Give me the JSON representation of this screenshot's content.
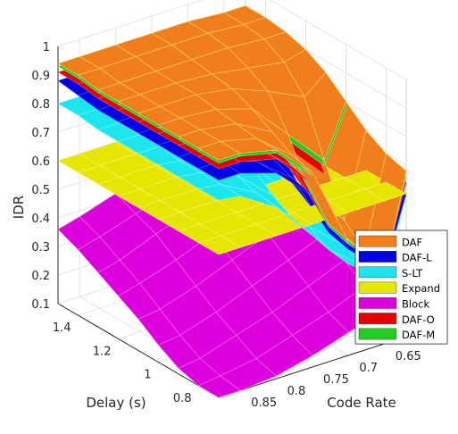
{
  "chart_data": {
    "type": "surface",
    "zlabel": "IDR",
    "xlabel": "Delay (s)",
    "ylabel": "Code Rate",
    "zlim": [
      0.1,
      1.0
    ],
    "z_ticks": [
      "0.1",
      "0.2",
      "0.3",
      "0.4",
      "0.5",
      "0.6",
      "0.7",
      "0.8",
      "0.9",
      "1"
    ],
    "x_ticks": [
      "0.8",
      "1",
      "1.2",
      "1.4"
    ],
    "y_ticks": [
      "0.85",
      "0.8",
      "0.75",
      "0.7",
      "0.65"
    ],
    "delay": [
      1.5,
      1.4,
      1.3,
      1.2,
      1.1,
      1.0,
      0.9,
      0.8,
      0.7
    ],
    "code_rate": [
      0.62,
      0.65,
      0.7,
      0.75,
      0.8,
      0.85,
      0.88
    ],
    "legend_position": "lower-right",
    "grid": true,
    "series": [
      {
        "name": "DAF",
        "color": "#f07e1a",
        "edge": "#ffd27a",
        "z": [
          [
            0.93,
            0.93,
            0.94,
            0.94,
            0.94,
            0.94,
            0.94
          ],
          [
            0.93,
            0.93,
            0.94,
            0.94,
            0.94,
            0.94,
            0.94
          ],
          [
            0.92,
            0.92,
            0.93,
            0.93,
            0.93,
            0.93,
            0.93
          ],
          [
            0.9,
            0.88,
            0.9,
            0.92,
            0.93,
            0.93,
            0.93
          ],
          [
            0.86,
            0.8,
            0.86,
            0.91,
            0.93,
            0.93,
            0.93
          ],
          [
            0.8,
            0.62,
            0.75,
            0.88,
            0.92,
            0.93,
            0.93
          ],
          [
            0.74,
            0.45,
            0.6,
            0.84,
            0.91,
            0.93,
            0.93
          ],
          [
            0.7,
            0.38,
            0.52,
            0.8,
            0.9,
            0.93,
            0.93
          ],
          [
            0.68,
            0.36,
            0.5,
            0.78,
            0.9,
            0.93,
            0.93
          ]
        ]
      },
      {
        "name": "DAF-L",
        "color": "#0000e6",
        "edge": "#5a5aff",
        "z": [
          [
            0.87,
            0.87,
            0.88,
            0.88,
            0.88,
            0.88,
            0.88
          ],
          [
            0.86,
            0.86,
            0.87,
            0.87,
            0.87,
            0.87,
            0.87
          ],
          [
            0.85,
            0.84,
            0.85,
            0.86,
            0.86,
            0.86,
            0.86
          ],
          [
            0.83,
            0.79,
            0.82,
            0.85,
            0.86,
            0.86,
            0.86
          ],
          [
            0.79,
            0.69,
            0.76,
            0.83,
            0.85,
            0.86,
            0.86
          ],
          [
            0.72,
            0.52,
            0.64,
            0.79,
            0.84,
            0.86,
            0.86
          ],
          [
            0.66,
            0.42,
            0.55,
            0.75,
            0.83,
            0.86,
            0.86
          ],
          [
            0.62,
            0.37,
            0.49,
            0.72,
            0.82,
            0.86,
            0.86
          ],
          [
            0.6,
            0.36,
            0.47,
            0.7,
            0.82,
            0.86,
            0.86
          ]
        ]
      },
      {
        "name": "S-LT",
        "color": "#1be6ee",
        "edge": "#7ff5f8",
        "z": [
          [
            0.8,
            0.78,
            0.79,
            0.8,
            0.8,
            0.8,
            0.8
          ],
          [
            0.8,
            0.77,
            0.78,
            0.79,
            0.8,
            0.8,
            0.8
          ],
          [
            0.79,
            0.74,
            0.76,
            0.78,
            0.79,
            0.79,
            0.79
          ],
          [
            0.77,
            0.67,
            0.72,
            0.76,
            0.78,
            0.79,
            0.79
          ],
          [
            0.73,
            0.55,
            0.65,
            0.73,
            0.77,
            0.79,
            0.79
          ],
          [
            0.67,
            0.43,
            0.55,
            0.68,
            0.75,
            0.78,
            0.79
          ],
          [
            0.62,
            0.36,
            0.47,
            0.62,
            0.73,
            0.78,
            0.79
          ],
          [
            0.6,
            0.33,
            0.43,
            0.58,
            0.71,
            0.78,
            0.79
          ],
          [
            0.6,
            0.32,
            0.42,
            0.56,
            0.7,
            0.78,
            0.79
          ]
        ]
      },
      {
        "name": "Expand",
        "color": "#e6e600",
        "edge": "#f4f47a",
        "z": [
          [
            0.6,
            0.6,
            0.6,
            0.6,
            0.6,
            0.6,
            0.6
          ],
          [
            0.6,
            0.6,
            0.6,
            0.6,
            0.6,
            0.6,
            0.6
          ],
          [
            0.6,
            0.6,
            0.6,
            0.6,
            0.6,
            0.6,
            0.6
          ],
          [
            0.6,
            0.6,
            0.6,
            0.6,
            0.6,
            0.6,
            0.6
          ],
          [
            0.6,
            0.6,
            0.6,
            0.6,
            0.6,
            0.6,
            0.6
          ],
          [
            0.6,
            0.6,
            0.6,
            0.6,
            0.6,
            0.6,
            0.6
          ],
          [
            0.6,
            0.6,
            0.6,
            0.6,
            0.6,
            0.6,
            0.6
          ],
          [
            0.6,
            0.6,
            0.6,
            0.6,
            0.6,
            0.6,
            0.6
          ],
          [
            0.6,
            0.6,
            0.6,
            0.6,
            0.6,
            0.6,
            0.6
          ]
        ]
      },
      {
        "name": "Block",
        "color": "#dd00dd",
        "edge": "#ef7aef",
        "z": [
          [
            0.56,
            0.53,
            0.5,
            0.46,
            0.42,
            0.38,
            0.36
          ],
          [
            0.53,
            0.51,
            0.47,
            0.43,
            0.39,
            0.35,
            0.33
          ],
          [
            0.5,
            0.48,
            0.44,
            0.4,
            0.36,
            0.31,
            0.29
          ],
          [
            0.46,
            0.44,
            0.4,
            0.36,
            0.31,
            0.27,
            0.25
          ],
          [
            0.42,
            0.4,
            0.36,
            0.31,
            0.26,
            0.22,
            0.21
          ],
          [
            0.38,
            0.36,
            0.31,
            0.26,
            0.21,
            0.17,
            0.16
          ],
          [
            0.33,
            0.31,
            0.26,
            0.21,
            0.17,
            0.13,
            0.12
          ],
          [
            0.28,
            0.26,
            0.21,
            0.17,
            0.13,
            0.11,
            0.1
          ],
          [
            0.24,
            0.22,
            0.18,
            0.14,
            0.11,
            0.1,
            0.1
          ]
        ]
      },
      {
        "name": "DAF-O",
        "color": "#e60000",
        "edge": "#ff6a6a",
        "z": [
          [
            0.9,
            0.9,
            0.91,
            0.91,
            0.91,
            0.91,
            0.91
          ],
          [
            0.9,
            0.9,
            0.91,
            0.91,
            0.91,
            0.91,
            0.91
          ],
          [
            0.89,
            0.89,
            0.9,
            0.9,
            0.9,
            0.9,
            0.9
          ],
          [
            0.87,
            0.84,
            0.87,
            0.89,
            0.9,
            0.9,
            0.9
          ],
          [
            0.83,
            0.75,
            0.81,
            0.88,
            0.9,
            0.9,
            0.9
          ],
          [
            0.76,
            0.57,
            0.7,
            0.84,
            0.89,
            0.9,
            0.9
          ],
          [
            0.7,
            0.44,
            0.58,
            0.8,
            0.88,
            0.9,
            0.9
          ],
          [
            0.66,
            0.38,
            0.51,
            0.76,
            0.87,
            0.9,
            0.9
          ],
          [
            0.64,
            0.37,
            0.49,
            0.74,
            0.87,
            0.9,
            0.9
          ]
        ]
      },
      {
        "name": "DAF-M",
        "color": "#22cc22",
        "edge": "#8cf08c",
        "z": [
          [
            0.92,
            0.92,
            0.92,
            0.93,
            0.93,
            0.93,
            0.93
          ],
          [
            0.92,
            0.92,
            0.92,
            0.93,
            0.93,
            0.93,
            0.93
          ],
          [
            0.91,
            0.91,
            0.91,
            0.92,
            0.92,
            0.92,
            0.92
          ],
          [
            0.89,
            0.86,
            0.89,
            0.91,
            0.92,
            0.92,
            0.92
          ],
          [
            0.85,
            0.78,
            0.84,
            0.9,
            0.92,
            0.92,
            0.92
          ],
          [
            0.78,
            0.6,
            0.73,
            0.87,
            0.91,
            0.92,
            0.92
          ],
          [
            0.72,
            0.45,
            0.59,
            0.83,
            0.9,
            0.92,
            0.92
          ],
          [
            0.68,
            0.38,
            0.51,
            0.79,
            0.89,
            0.92,
            0.92
          ],
          [
            0.66,
            0.37,
            0.49,
            0.77,
            0.89,
            0.92,
            0.92
          ]
        ]
      }
    ]
  }
}
